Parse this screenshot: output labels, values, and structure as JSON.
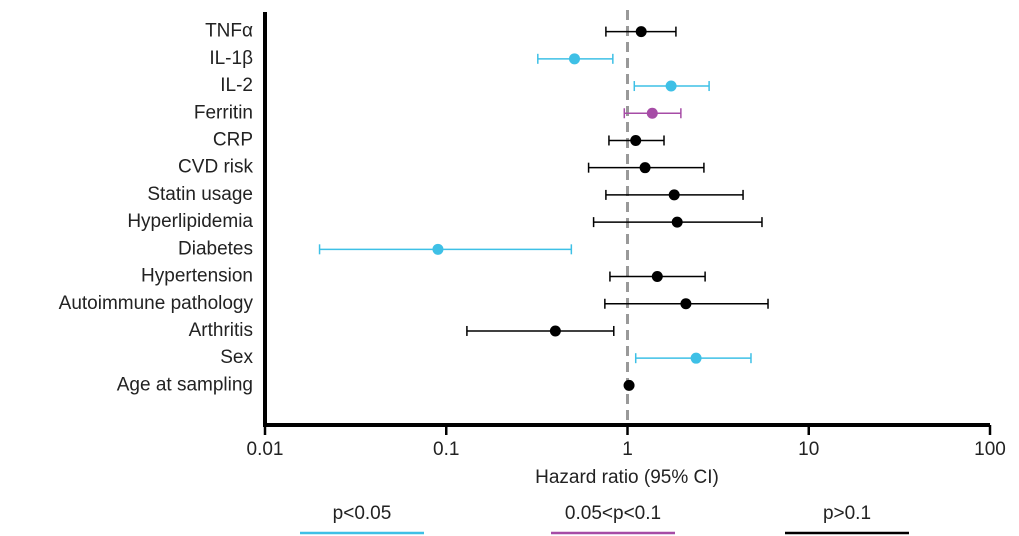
{
  "chart_data": {
    "type": "forest",
    "categories": [
      "TNFα",
      "IL-1β",
      "IL-2",
      "Ferritin",
      "CRP",
      "CVD risk",
      "Statin usage",
      "Hyperlipidemia",
      "Diabetes",
      "Hypertension",
      "Autoimmune pathology",
      "Arthritis",
      "Sex",
      "Age at sampling"
    ],
    "values": [
      1.19,
      0.51,
      1.74,
      1.37,
      1.11,
      1.25,
      1.81,
      1.88,
      0.09,
      1.46,
      2.1,
      0.4,
      2.39,
      1.02
    ],
    "ci_low": [
      0.76,
      0.32,
      1.09,
      0.96,
      0.79,
      0.61,
      0.76,
      0.65,
      0.02,
      0.8,
      0.75,
      0.13,
      1.11,
      1.0
    ],
    "ci_high": [
      1.85,
      0.83,
      2.82,
      1.97,
      1.59,
      2.64,
      4.34,
      5.52,
      0.49,
      2.68,
      5.96,
      0.84,
      4.8,
      1.04
    ],
    "colors": [
      "#000000",
      "#3ec0e6",
      "#3ec0e6",
      "#a64ca6",
      "#000000",
      "#000000",
      "#000000",
      "#000000",
      "#3ec0e6",
      "#000000",
      "#000000",
      "#000000",
      "#3ec0e6",
      "#000000"
    ],
    "xlabel": "Hazard ratio (95% CI)",
    "xscale": "log",
    "xlim": [
      0.01,
      100
    ],
    "xticks": [
      0.01,
      0.1,
      1,
      10,
      100
    ],
    "reference_line": 1,
    "legend": [
      {
        "name": "p<0.05",
        "color": "#3ec0e6"
      },
      {
        "name": "0.05<p<0.1",
        "color": "#a64ca6"
      },
      {
        "name": "p>0.1",
        "color": "#000000"
      }
    ]
  }
}
